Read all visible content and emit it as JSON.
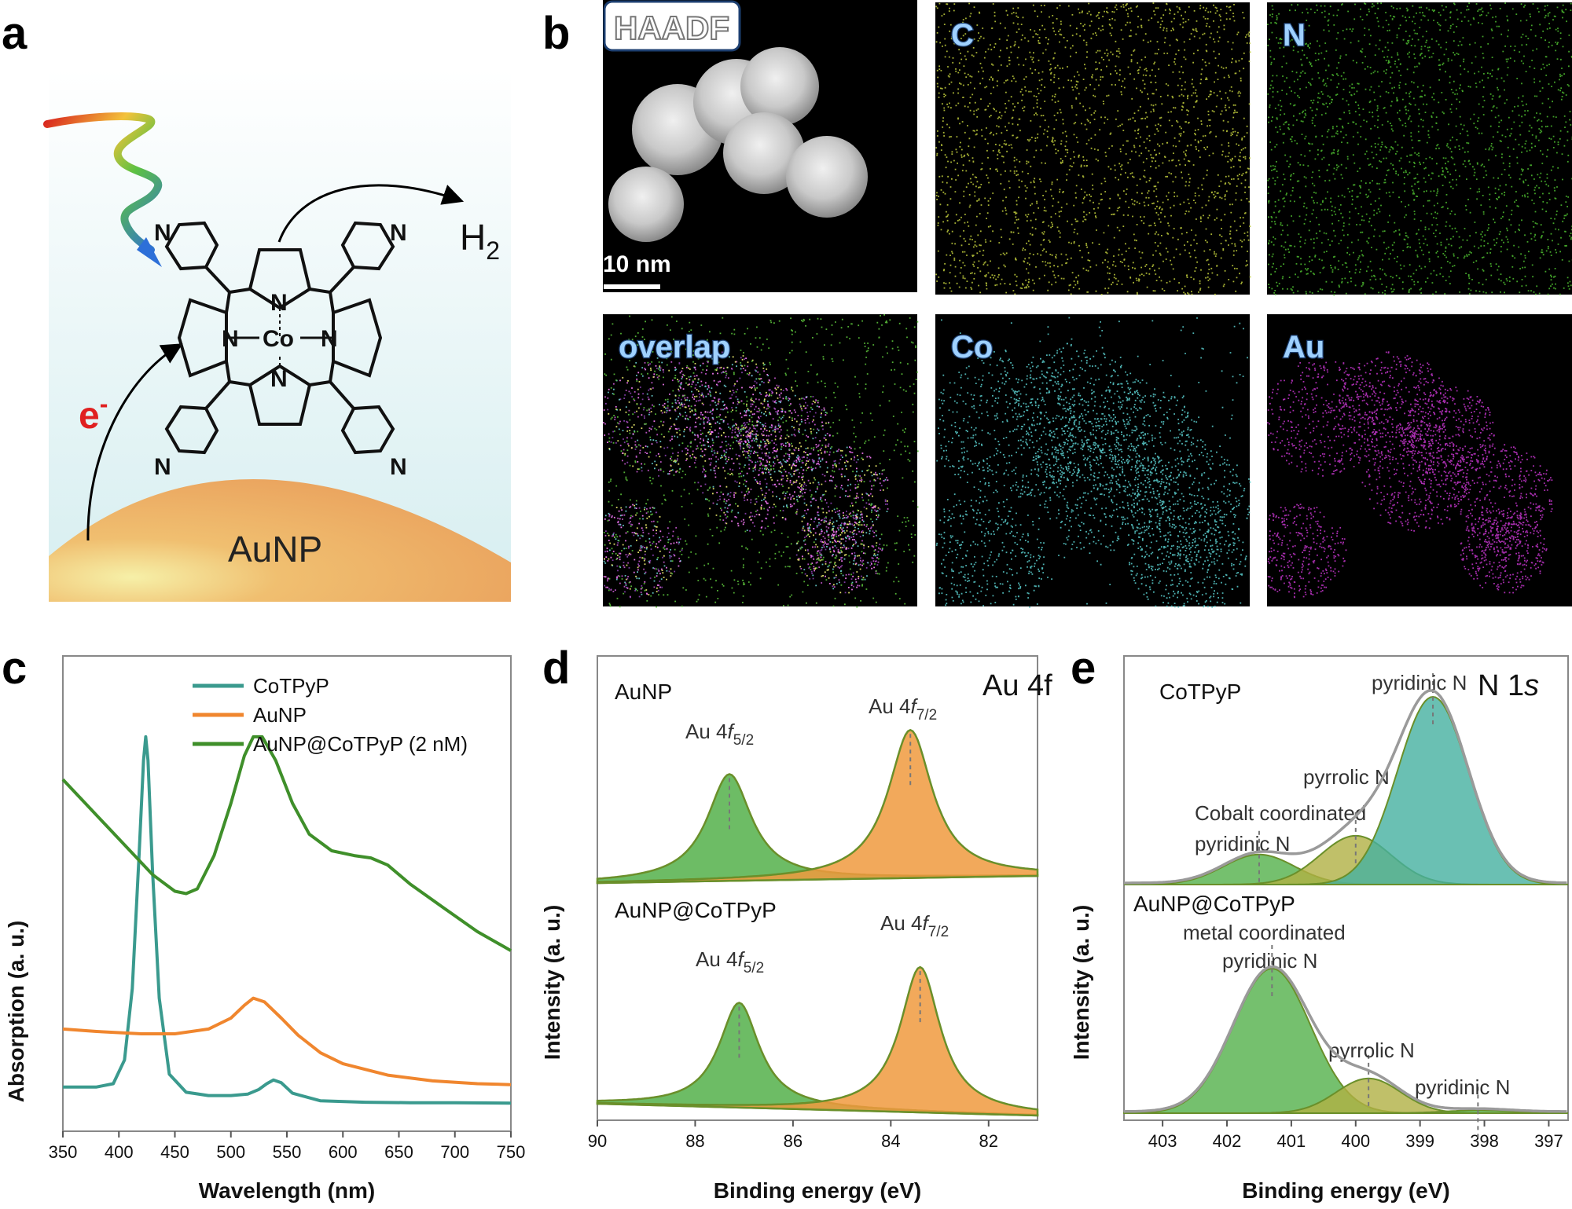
{
  "panels": {
    "a": "a",
    "b": "b",
    "c": "c",
    "d": "d",
    "e": "e"
  },
  "panel_a": {
    "h2_main": "H",
    "h2_sub": "2",
    "electron_main": "e",
    "electron_sup": "-",
    "support_label": "AuNP",
    "atoms": {
      "n": "N",
      "co": "Co"
    },
    "colors": {
      "background_top": "#ffffff",
      "background_bottom": "#d6eef0",
      "particle": "#eeaa62",
      "electron": "#e02020"
    }
  },
  "panel_b": {
    "maps": [
      {
        "label": "HAADF",
        "color": "#d8d8d8"
      },
      {
        "label": "C",
        "color": "#b8c43a"
      },
      {
        "label": "N",
        "color": "#49b32e"
      },
      {
        "label": "overlap",
        "color": "#c85ad0"
      },
      {
        "label": "Co",
        "color": "#55c4c4"
      },
      {
        "label": "Au",
        "color": "#b832c0"
      }
    ],
    "scale_bar": "10 nm"
  },
  "chart_data": [
    {
      "type": "line",
      "panel": "c",
      "xlabel": "Wavelength (nm)",
      "ylabel": "Absorption (a. u.)",
      "xlim": [
        350,
        750
      ],
      "xticks": [
        350,
        400,
        450,
        500,
        550,
        600,
        650,
        700,
        750
      ],
      "ylim": [
        0,
        1
      ],
      "legend": "top-left",
      "series": [
        {
          "name": "CoTPyP",
          "color": "#3a9a8e",
          "points": [
            [
              350,
              0.093
            ],
            [
              380,
              0.093
            ],
            [
              395,
              0.1
            ],
            [
              405,
              0.15
            ],
            [
              412,
              0.3
            ],
            [
              418,
              0.58
            ],
            [
              422,
              0.78
            ],
            [
              424,
              0.83
            ],
            [
              426,
              0.78
            ],
            [
              430,
              0.55
            ],
            [
              436,
              0.28
            ],
            [
              445,
              0.12
            ],
            [
              460,
              0.082
            ],
            [
              480,
              0.075
            ],
            [
              500,
              0.075
            ],
            [
              515,
              0.078
            ],
            [
              525,
              0.088
            ],
            [
              532,
              0.1
            ],
            [
              538,
              0.108
            ],
            [
              545,
              0.102
            ],
            [
              555,
              0.08
            ],
            [
              580,
              0.064
            ],
            [
              620,
              0.061
            ],
            [
              660,
              0.06
            ],
            [
              700,
              0.06
            ],
            [
              750,
              0.059
            ]
          ]
        },
        {
          "name": "AuNP",
          "color": "#f0862e",
          "points": [
            [
              350,
              0.215
            ],
            [
              380,
              0.21
            ],
            [
              420,
              0.205
            ],
            [
              450,
              0.205
            ],
            [
              480,
              0.215
            ],
            [
              500,
              0.238
            ],
            [
              512,
              0.265
            ],
            [
              520,
              0.28
            ],
            [
              530,
              0.272
            ],
            [
              545,
              0.238
            ],
            [
              560,
              0.202
            ],
            [
              580,
              0.165
            ],
            [
              600,
              0.142
            ],
            [
              640,
              0.118
            ],
            [
              680,
              0.106
            ],
            [
              720,
              0.1
            ],
            [
              750,
              0.098
            ]
          ]
        },
        {
          "name": "AuNP@CoTPyP (2 nM)",
          "color": "#3f8f2a",
          "points": [
            [
              350,
              0.74
            ],
            [
              370,
              0.69
            ],
            [
              390,
              0.64
            ],
            [
              410,
              0.59
            ],
            [
              430,
              0.54
            ],
            [
              450,
              0.505
            ],
            [
              460,
              0.5
            ],
            [
              470,
              0.51
            ],
            [
              485,
              0.58
            ],
            [
              500,
              0.69
            ],
            [
              512,
              0.79
            ],
            [
              520,
              0.83
            ],
            [
              528,
              0.83
            ],
            [
              540,
              0.78
            ],
            [
              555,
              0.69
            ],
            [
              570,
              0.625
            ],
            [
              590,
              0.59
            ],
            [
              610,
              0.58
            ],
            [
              625,
              0.575
            ],
            [
              640,
              0.56
            ],
            [
              660,
              0.52
            ],
            [
              690,
              0.47
            ],
            [
              720,
              0.42
            ],
            [
              750,
              0.38
            ]
          ]
        }
      ]
    },
    {
      "type": "area",
      "panel": "d",
      "title": "Au 4f",
      "xlabel": "Binding energy (eV)",
      "ylabel": "Intensity (a. u.)",
      "xlim": [
        90,
        81
      ],
      "xticks": [
        90,
        88,
        86,
        84,
        82
      ],
      "subplots": [
        {
          "name": "AuNP",
          "peaks": [
            {
              "label": "Au 4f5/2",
              "label_main": "Au 4",
              "label_f": "f",
              "label_sub": "5/2",
              "center": 87.3,
              "height": 0.62,
              "width": 0.55,
              "color": "#53b04a"
            },
            {
              "label": "Au 4f7/2",
              "label_main": "Au 4",
              "label_f": "f",
              "label_sub": "7/2",
              "center": 83.6,
              "height": 0.86,
              "width": 0.55,
              "color": "#f09a3e"
            }
          ]
        },
        {
          "name": "AuNP@CoTPyP",
          "peaks": [
            {
              "label": "Au 4f5/2",
              "label_main": "Au 4",
              "label_f": "f",
              "label_sub": "5/2",
              "center": 87.1,
              "height": 0.62,
              "width": 0.5,
              "color": "#53b04a"
            },
            {
              "label": "Au 4f7/2",
              "label_main": "Au 4",
              "label_f": "f",
              "label_sub": "7/2",
              "center": 83.4,
              "height": 0.86,
              "width": 0.5,
              "color": "#f09a3e"
            }
          ]
        }
      ]
    },
    {
      "type": "area",
      "panel": "e",
      "title": "N 1s",
      "xlabel": "Binding energy (eV)",
      "ylabel": "Intensity (a. u.)",
      "xlim": [
        403.6,
        396.7
      ],
      "xticks": [
        403,
        402,
        401,
        400,
        399,
        398,
        397
      ],
      "subplots": [
        {
          "name": "CoTPyP",
          "envelope_color": "#9a9a9a",
          "peaks": [
            {
              "label": "Cobalt coordinated pyridinic N",
              "label_line1": "Cobalt coordinated",
              "label_line2": "pyridinic N",
              "center": 401.5,
              "height": 0.16,
              "sigma": 0.55,
              "color": "#53b04a"
            },
            {
              "label": "pyrrolic N",
              "center": 400.0,
              "height": 0.26,
              "sigma": 0.55,
              "color": "#b0b044"
            },
            {
              "label": "pyridinic N",
              "center": 398.8,
              "height": 1.0,
              "sigma": 0.55,
              "color": "#45b0a0"
            }
          ]
        },
        {
          "name": "AuNP@CoTPyP",
          "envelope_color": "#9a9a9a",
          "peaks": [
            {
              "label": "metal coordinated pyridinic N",
              "label_line1": "metal coordinated",
              "label_line2": "pyridinic N",
              "center": 401.3,
              "height": 1.0,
              "sigma": 0.6,
              "color": "#53b04a"
            },
            {
              "label": "pyrrolic N",
              "center": 399.8,
              "height": 0.24,
              "sigma": 0.5,
              "color": "#b0b044"
            },
            {
              "label": "pyridinic N",
              "center": 398.1,
              "height": 0.02,
              "sigma": 0.5,
              "color": "#53b04a"
            }
          ]
        }
      ]
    }
  ]
}
